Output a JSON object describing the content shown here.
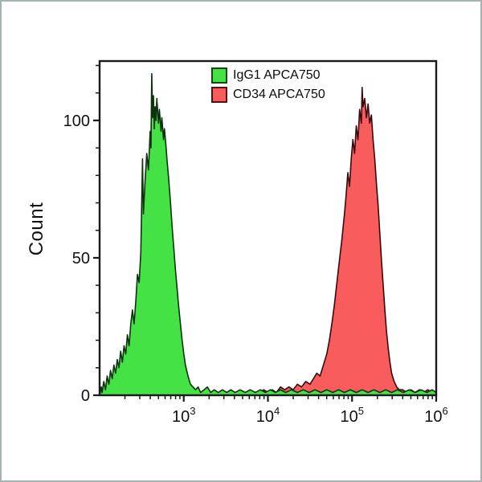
{
  "figure": {
    "background": "#ffffff",
    "frame_border_color": "#a9b2b2",
    "axis_color": "#1a1a1a",
    "text_color": "#111111"
  },
  "legend": {
    "position": "top-center-inside",
    "items": [
      {
        "label": "IgG1 APCA750",
        "swatch_color": "#45e245",
        "swatch_border": "#0c4a0c"
      },
      {
        "label": "CD34 APCA750",
        "swatch_color": "#f85c5c",
        "swatch_border": "#5a0f0f"
      }
    ]
  },
  "chart_data": {
    "type": "area",
    "subtype": "flow-cytometry-histogram-overlay",
    "title": "",
    "xlabel": "",
    "ylabel": "Count",
    "x_scale": "log10",
    "x_log10_range": [
      2,
      6
    ],
    "ylim": [
      0,
      121.6
    ],
    "y_max": 121.6,
    "grid": false,
    "x_tick_labels": [
      {
        "base": "10",
        "exp": "3"
      },
      {
        "base": "10",
        "exp": "4"
      },
      {
        "base": "10",
        "exp": "5"
      },
      {
        "base": "10",
        "exp": "6"
      }
    ],
    "x_major_ticks_log10": [
      3,
      4,
      5,
      6
    ],
    "x_minor_ticks_log10": [
      2.301,
      2.477,
      2.602,
      2.699,
      2.778,
      2.845,
      2.903,
      2.954,
      3.301,
      3.477,
      3.602,
      3.699,
      3.778,
      3.845,
      3.903,
      3.954,
      4.301,
      4.477,
      4.602,
      4.699,
      4.778,
      4.845,
      4.903,
      4.954,
      5.301,
      5.477,
      5.602,
      5.699,
      5.778,
      5.845,
      5.903,
      5.954
    ],
    "y_tick_labels": [
      "0",
      "50",
      "100"
    ],
    "y_major_ticks": [
      0,
      50,
      100
    ],
    "y_minor_ticks": [
      10,
      20,
      30,
      40,
      60,
      70,
      80,
      90,
      110,
      120
    ],
    "series": [
      {
        "name": "IgG1 APCA750",
        "data_name": "igg1-histogram",
        "fill": "#45e245",
        "stroke": "#0c330c",
        "peak_log10_x": 2.62,
        "peak_count": 117,
        "points": [
          [
            2.0,
            0
          ],
          [
            2.02,
            3
          ],
          [
            2.03,
            1
          ],
          [
            2.05,
            5
          ],
          [
            2.07,
            2
          ],
          [
            2.09,
            7
          ],
          [
            2.11,
            4
          ],
          [
            2.13,
            9
          ],
          [
            2.15,
            6
          ],
          [
            2.17,
            11
          ],
          [
            2.19,
            8
          ],
          [
            2.21,
            13
          ],
          [
            2.23,
            10
          ],
          [
            2.25,
            16
          ],
          [
            2.27,
            12
          ],
          [
            2.29,
            18
          ],
          [
            2.31,
            15
          ],
          [
            2.33,
            22
          ],
          [
            2.35,
            18
          ],
          [
            2.37,
            26
          ],
          [
            2.39,
            31
          ],
          [
            2.41,
            26
          ],
          [
            2.43,
            34
          ],
          [
            2.45,
            44
          ],
          [
            2.47,
            41
          ],
          [
            2.49,
            52
          ],
          [
            2.51,
            86
          ],
          [
            2.52,
            66
          ],
          [
            2.54,
            78
          ],
          [
            2.56,
            88
          ],
          [
            2.58,
            82
          ],
          [
            2.6,
            96
          ],
          [
            2.61,
            90
          ],
          [
            2.62,
            117
          ],
          [
            2.63,
            101
          ],
          [
            2.64,
            109
          ],
          [
            2.65,
            97
          ],
          [
            2.66,
            105
          ],
          [
            2.67,
            100
          ],
          [
            2.68,
            108
          ],
          [
            2.7,
            99
          ],
          [
            2.71,
            104
          ],
          [
            2.73,
            96
          ],
          [
            2.74,
            101
          ],
          [
            2.76,
            93
          ],
          [
            2.77,
            97
          ],
          [
            2.79,
            90
          ],
          [
            2.8,
            86
          ],
          [
            2.82,
            79
          ],
          [
            2.84,
            71
          ],
          [
            2.86,
            62
          ],
          [
            2.88,
            54
          ],
          [
            2.9,
            46
          ],
          [
            2.92,
            39
          ],
          [
            2.94,
            32
          ],
          [
            2.96,
            26
          ],
          [
            2.98,
            20
          ],
          [
            3.0,
            15
          ],
          [
            3.02,
            11
          ],
          [
            3.05,
            7
          ],
          [
            3.08,
            4
          ],
          [
            3.11,
            3
          ],
          [
            3.14,
            2
          ],
          [
            3.17,
            3
          ],
          [
            3.2,
            1
          ],
          [
            3.24,
            2
          ],
          [
            3.28,
            3
          ],
          [
            3.32,
            1
          ],
          [
            3.36,
            2
          ],
          [
            3.41,
            1
          ],
          [
            3.46,
            2
          ],
          [
            3.51,
            1
          ],
          [
            3.56,
            2
          ],
          [
            3.61,
            1
          ],
          [
            3.67,
            2
          ],
          [
            3.73,
            1
          ],
          [
            3.79,
            2
          ],
          [
            3.85,
            1
          ],
          [
            3.91,
            2
          ],
          [
            3.97,
            1
          ],
          [
            4.03,
            2
          ],
          [
            4.09,
            1
          ],
          [
            4.15,
            2
          ],
          [
            4.21,
            1
          ],
          [
            4.28,
            2
          ],
          [
            4.35,
            1
          ],
          [
            4.42,
            2
          ],
          [
            4.49,
            1
          ],
          [
            4.56,
            2
          ],
          [
            4.63,
            1
          ],
          [
            4.7,
            2
          ],
          [
            4.77,
            1
          ],
          [
            4.84,
            2
          ],
          [
            4.91,
            1
          ],
          [
            4.98,
            2
          ],
          [
            5.05,
            1
          ],
          [
            5.12,
            2
          ],
          [
            5.19,
            1
          ],
          [
            5.26,
            2
          ],
          [
            5.33,
            1
          ],
          [
            5.4,
            2
          ],
          [
            5.47,
            1
          ],
          [
            5.54,
            2
          ],
          [
            5.61,
            1
          ],
          [
            5.68,
            2
          ],
          [
            5.75,
            1
          ],
          [
            5.82,
            2
          ],
          [
            5.89,
            1
          ],
          [
            5.95,
            2
          ],
          [
            6.0,
            1
          ]
        ]
      },
      {
        "name": "CD34 APCA750",
        "data_name": "cd34-histogram",
        "fill": "#f85c5c",
        "stroke": "#3a0a0a",
        "peak_log10_x": 5.12,
        "peak_count": 112,
        "points": [
          [
            2.0,
            0
          ],
          [
            3.55,
            0
          ],
          [
            3.6,
            0
          ],
          [
            3.65,
            1
          ],
          [
            3.7,
            0
          ],
          [
            3.75,
            1
          ],
          [
            3.8,
            1
          ],
          [
            3.85,
            0
          ],
          [
            3.9,
            1
          ],
          [
            3.95,
            2
          ],
          [
            4.0,
            1
          ],
          [
            4.05,
            2
          ],
          [
            4.1,
            1
          ],
          [
            4.15,
            3
          ],
          [
            4.2,
            2
          ],
          [
            4.25,
            3
          ],
          [
            4.3,
            2
          ],
          [
            4.35,
            4
          ],
          [
            4.4,
            3
          ],
          [
            4.45,
            5
          ],
          [
            4.5,
            4
          ],
          [
            4.54,
            6
          ],
          [
            4.58,
            8
          ],
          [
            4.62,
            7
          ],
          [
            4.66,
            11
          ],
          [
            4.7,
            15
          ],
          [
            4.73,
            20
          ],
          [
            4.76,
            26
          ],
          [
            4.79,
            33
          ],
          [
            4.82,
            41
          ],
          [
            4.85,
            49
          ],
          [
            4.88,
            57
          ],
          [
            4.91,
            66
          ],
          [
            4.93,
            73
          ],
          [
            4.95,
            81
          ],
          [
            4.97,
            76
          ],
          [
            4.99,
            86
          ],
          [
            5.01,
            93
          ],
          [
            5.03,
            88
          ],
          [
            5.05,
            98
          ],
          [
            5.07,
            93
          ],
          [
            5.09,
            104
          ],
          [
            5.11,
            99
          ],
          [
            5.12,
            112
          ],
          [
            5.13,
            105
          ],
          [
            5.15,
            108
          ],
          [
            5.17,
            101
          ],
          [
            5.19,
            106
          ],
          [
            5.21,
            99
          ],
          [
            5.23,
            102
          ],
          [
            5.25,
            93
          ],
          [
            5.27,
            86
          ],
          [
            5.29,
            77
          ],
          [
            5.31,
            69
          ],
          [
            5.33,
            59
          ],
          [
            5.35,
            49
          ],
          [
            5.37,
            40
          ],
          [
            5.39,
            31
          ],
          [
            5.41,
            23
          ],
          [
            5.43,
            17
          ],
          [
            5.45,
            12
          ],
          [
            5.47,
            8
          ],
          [
            5.5,
            5
          ],
          [
            5.53,
            3
          ],
          [
            5.56,
            2
          ],
          [
            5.6,
            2
          ],
          [
            5.65,
            1
          ],
          [
            5.7,
            2
          ],
          [
            5.75,
            1
          ],
          [
            5.8,
            2
          ],
          [
            5.85,
            1
          ],
          [
            5.9,
            2
          ],
          [
            5.95,
            1
          ],
          [
            6.0,
            1
          ]
        ]
      }
    ]
  }
}
